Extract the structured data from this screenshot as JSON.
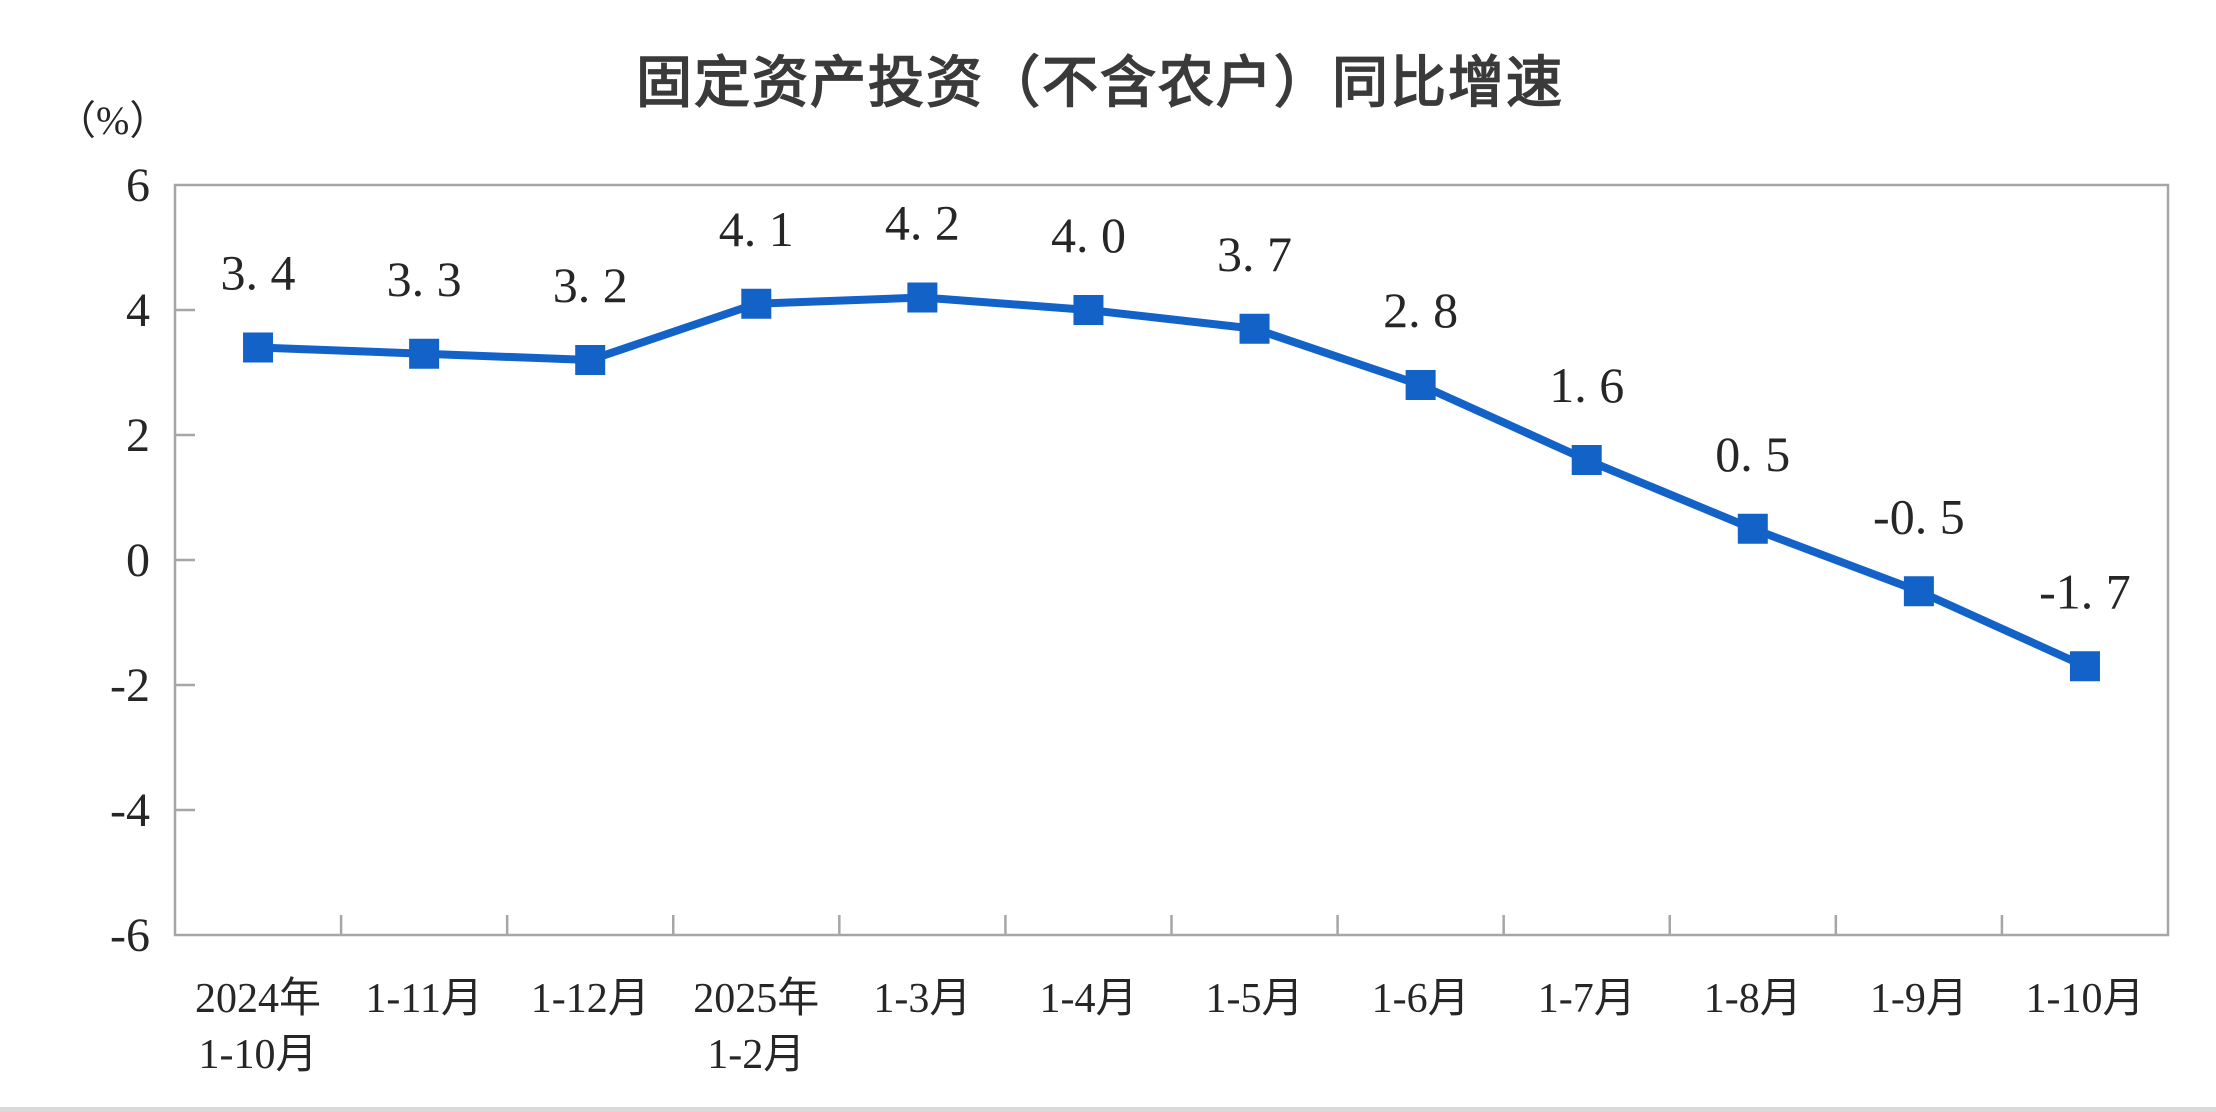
{
  "chart_data": {
    "type": "line",
    "title": "固定资产投资（不含农户）同比增速",
    "ylabel": "（%）",
    "xlabel": "",
    "categories": [
      [
        "2024年",
        "1-10月"
      ],
      [
        "1-11月"
      ],
      [
        "1-12月"
      ],
      [
        "2025年",
        "1-2月"
      ],
      [
        "1-3月"
      ],
      [
        "1-4月"
      ],
      [
        "1-5月"
      ],
      [
        "1-6月"
      ],
      [
        "1-7月"
      ],
      [
        "1-8月"
      ],
      [
        "1-9月"
      ],
      [
        "1-10月"
      ]
    ],
    "values": [
      3.4,
      3.3,
      3.2,
      4.1,
      4.2,
      4.0,
      3.7,
      2.8,
      1.6,
      0.5,
      -0.5,
      -1.7
    ],
    "point_labels": [
      "3. 4",
      "3. 3",
      "3. 2",
      "4. 1",
      "4. 2",
      "4. 0",
      "3. 7",
      "2. 8",
      "1. 6",
      "0. 5",
      "-0. 5",
      "-1. 7"
    ],
    "ylim": [
      -6,
      6
    ],
    "yticks": [
      6,
      4,
      2,
      0,
      -2,
      -4,
      -6
    ],
    "grid": false,
    "legend": "none",
    "series_name": "固定资产投资（不含农户）同比增速",
    "line_color": "#1262C8",
    "marker": "square",
    "marker_color": "#1262C8",
    "axis_color": "#a6a6a6",
    "label_color": "#262626"
  }
}
